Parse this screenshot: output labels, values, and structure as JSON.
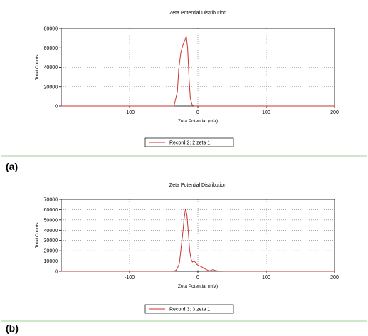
{
  "panel_labels": [
    "(a)",
    "(b)"
  ],
  "chart_data": [
    {
      "type": "line",
      "title": "Zeta Potential Distribution",
      "xlabel": "Zeta Potential (mV)",
      "ylabel": "Total Counts",
      "xlim": [
        -200,
        200
      ],
      "ylim": [
        0,
        80000
      ],
      "x_ticks": [
        -100,
        0,
        100,
        200
      ],
      "y_ticks": [
        0,
        20000,
        40000,
        60000,
        80000
      ],
      "grid": "dotted",
      "legend_position": "bottom-center",
      "series": [
        {
          "name": "Record 2: 2 zeta 1",
          "color": "#cc3333",
          "x": [
            -200,
            -40,
            -35,
            -30,
            -28,
            -25,
            -22,
            -19,
            -17,
            -15,
            -13,
            -11,
            -8,
            -5,
            0,
            200
          ],
          "y": [
            0,
            0,
            0,
            15000,
            38000,
            55000,
            63000,
            68000,
            72000,
            60000,
            30000,
            8000,
            500,
            0,
            0,
            0
          ]
        }
      ]
    },
    {
      "type": "line",
      "title": "Zeta Potential Distribution",
      "xlabel": "Zeta Potential (mV)",
      "ylabel": "Total Counts",
      "xlim": [
        -200,
        200
      ],
      "ylim": [
        0,
        70000
      ],
      "x_ticks": [
        -100,
        0,
        100,
        200
      ],
      "y_ticks": [
        0,
        10000,
        20000,
        30000,
        40000,
        50000,
        60000,
        70000
      ],
      "grid": "dotted",
      "legend_position": "bottom-center",
      "series": [
        {
          "name": "Record 3: 3 zeta 1",
          "color": "#cc3333",
          "x": [
            -200,
            -40,
            -35,
            -32,
            -30,
            -27,
            -25,
            -22,
            -20,
            -18,
            -16,
            -14,
            -12,
            -10,
            -8,
            -6,
            -4,
            -2,
            0,
            5,
            10,
            15,
            18,
            20,
            22,
            25,
            30,
            40,
            200
          ],
          "y": [
            0,
            0,
            300,
            1000,
            3000,
            8000,
            20000,
            38000,
            52000,
            61000,
            55000,
            38000,
            20000,
            12000,
            9000,
            10000,
            9000,
            7000,
            6000,
            4500,
            2500,
            800,
            500,
            1200,
            1500,
            800,
            300,
            0,
            0
          ]
        }
      ]
    }
  ]
}
